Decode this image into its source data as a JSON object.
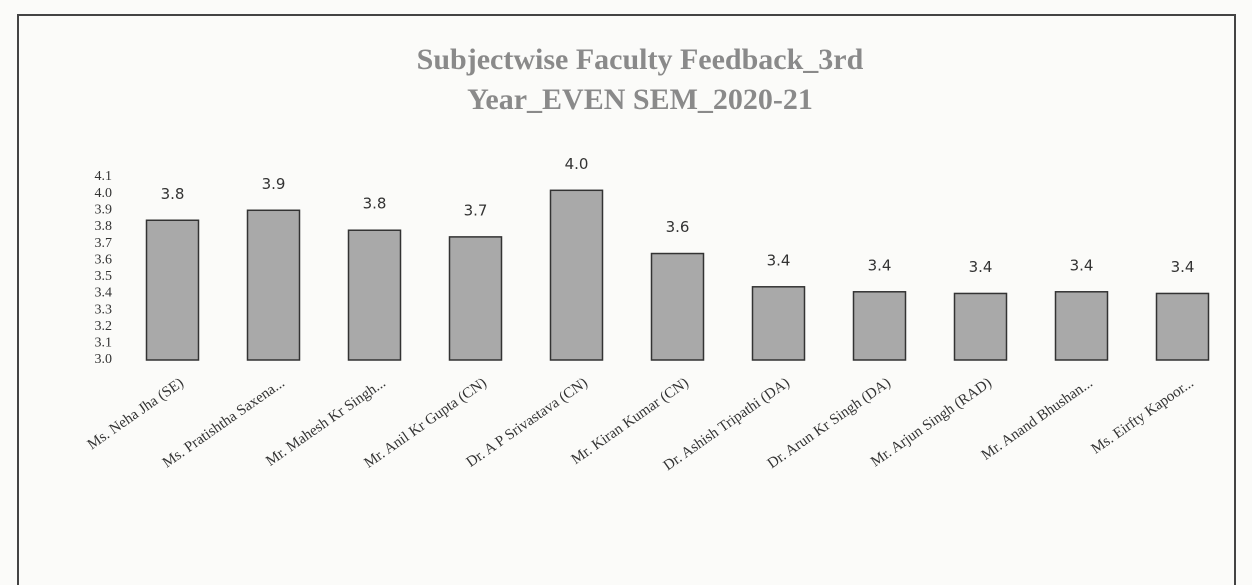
{
  "chart_data": {
    "type": "bar",
    "title": "Subjectwise Faculty Feedback_3rd Year_EVEN SEM_2020-21",
    "categories": [
      "Ms. Neha Jha (SE)",
      "Ms. Pratishtha Saxena...",
      "Mr. Mahesh Kr Singh...",
      "Mr. Anil Kr Gupta (CN)",
      "Dr. A P Srivastava (CN)",
      "Mr. Kiran Kumar (CN)",
      "Dr. Ashish Tripathi (DA)",
      "Dr. Arun Kr Singh (DA)",
      "Mr. Arjun Singh (RAD)",
      "Mr. Anand Bhushan...",
      "Ms. Eirfty Kapoor..."
    ],
    "values": [
      3.84,
      3.9,
      3.78,
      3.74,
      4.02,
      3.64,
      3.44,
      3.41,
      3.4,
      3.41,
      3.4
    ],
    "value_labels": [
      "3.8",
      "3.9",
      "3.8",
      "3.7",
      "4.0",
      "3.6",
      "3.4",
      "3.4",
      "3.4",
      "3.4",
      "3.4"
    ],
    "color": "#a9a9a9",
    "ylim": [
      3,
      4.1
    ],
    "yticks": [
      {
        "value": 3,
        "label": "3.0"
      },
      3.1,
      3.2,
      3.3,
      3.4,
      3.5,
      3.6,
      3.7,
      3.8,
      3.9,
      {
        "value": 4,
        "label": "4.0"
      },
      4.1
    ],
    "grid": false
  }
}
